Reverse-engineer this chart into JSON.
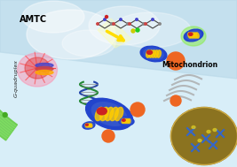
{
  "title": "",
  "bg_sky_top": "#b8d8e8",
  "bg_sky_bottom": "#d8eef8",
  "bg_cell_color": "#c8b860",
  "text_AMTC": "AMTC",
  "text_Gquad": "G-quadruplex",
  "text_Mito": "Mitochondrion",
  "membrane_color": "#66cc44",
  "membrane_stripe": "#88ee66",
  "membrane_ball_color": "#44aa22",
  "arrow_yellow": "#ffdd00",
  "dna_color1": "#2244aa",
  "dna_color2": "#228833",
  "glow_red": "#dd2222",
  "glow_pink": "#ff88aa",
  "mito_blue": "#2244cc",
  "mito_red": "#cc2222",
  "mito_yellow": "#ffcc00",
  "orange_ball": "#ee6622",
  "nucleus_color": "#8b7320",
  "chromosome_color": "#3366cc",
  "fig_width": 2.67,
  "fig_height": 1.89,
  "dpi": 100
}
